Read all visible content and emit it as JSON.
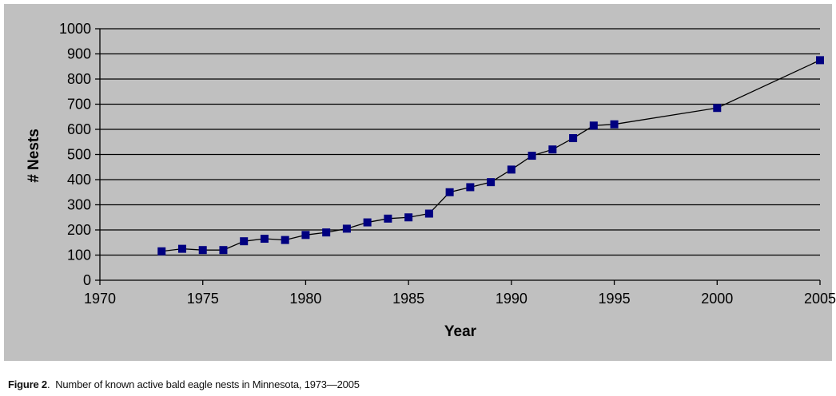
{
  "chart_data": {
    "type": "line",
    "xlabel": "Year",
    "ylabel": "# Nests",
    "xlim": [
      1970,
      2005
    ],
    "ylim": [
      0,
      1000
    ],
    "xticks": [
      1970,
      1975,
      1980,
      1985,
      1990,
      1995,
      2000,
      2005
    ],
    "yticks": [
      0,
      100,
      200,
      300,
      400,
      500,
      600,
      700,
      800,
      900,
      1000
    ],
    "grid": "horizontal",
    "colors": {
      "series": "#000080",
      "line": "#000000",
      "background": "#c0c0c0"
    },
    "series": [
      {
        "marker": "square",
        "x": [
          1973,
          1974,
          1975,
          1976,
          1977,
          1978,
          1979,
          1980,
          1981,
          1982,
          1983,
          1984,
          1985,
          1986,
          1987,
          1988,
          1989,
          1990,
          1991,
          1992,
          1993,
          1994,
          1995,
          2000,
          2005
        ],
        "y": [
          115,
          125,
          120,
          120,
          155,
          165,
          160,
          180,
          190,
          205,
          230,
          245,
          250,
          265,
          350,
          370,
          390,
          440,
          495,
          520,
          565,
          615,
          620,
          685,
          875
        ]
      }
    ]
  },
  "caption": {
    "label": "Figure 2",
    "text": "Number of known active bald eagle nests in Minnesota, 1973—2005"
  }
}
